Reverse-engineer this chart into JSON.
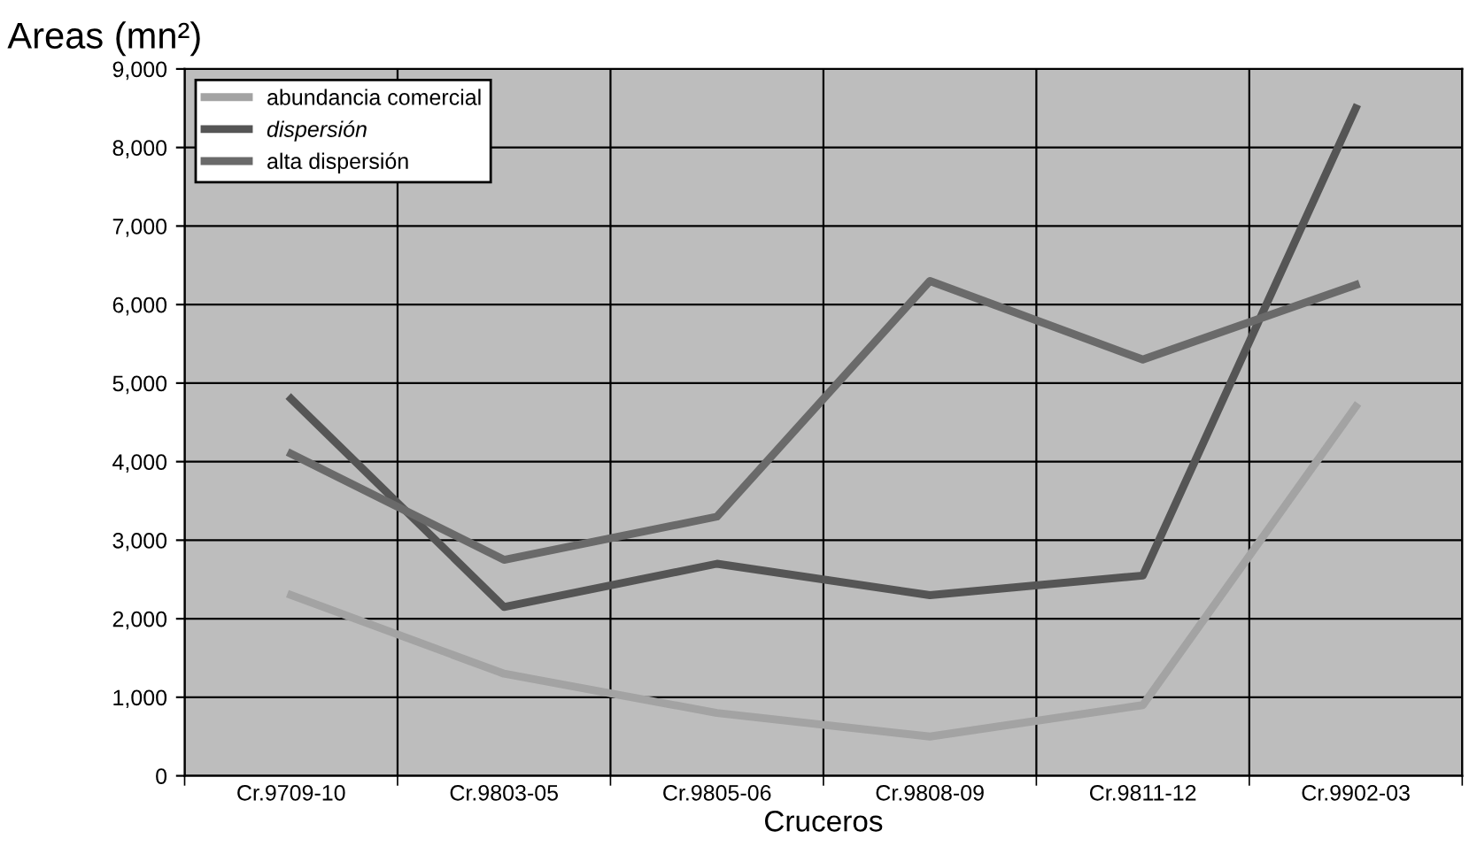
{
  "chart_data": {
    "type": "line",
    "title": "Areas (mn²)",
    "xlabel": "Cruceros",
    "categories": [
      "Cr.9709-10",
      "Cr.9803-05",
      "Cr.9805-06",
      "Cr.9808-09",
      "Cr.9811-12",
      "Cr.9902-03"
    ],
    "series": [
      {
        "name": "abundancia comercial",
        "color": "#a3a3a3",
        "values": [
          2300,
          1300,
          800,
          500,
          900,
          4700
        ]
      },
      {
        "name": "dispersión",
        "color": "#555555",
        "values": [
          4800,
          2150,
          2700,
          2300,
          2550,
          8500
        ]
      },
      {
        "name": "alta dispersión",
        "color": "#6a6a6a",
        "values": [
          4100,
          2750,
          3300,
          6300,
          5300,
          6250
        ]
      }
    ],
    "ylim": [
      0,
      9000
    ],
    "yticks": [
      {
        "value": 0,
        "label": "0"
      },
      {
        "value": 1000,
        "label": "1,000"
      },
      {
        "value": 2000,
        "label": "2,000"
      },
      {
        "value": 3000,
        "label": "3,000"
      },
      {
        "value": 4000,
        "label": "4,000"
      },
      {
        "value": 5000,
        "label": "5,000"
      },
      {
        "value": 6000,
        "label": "6,000"
      },
      {
        "value": 7000,
        "label": "7,000"
      },
      {
        "value": 8000,
        "label": "8,000"
      },
      {
        "value": 9000,
        "label": "9,000"
      }
    ],
    "grid": true,
    "legend": "top left",
    "marker": "none",
    "line_style": "solid"
  }
}
